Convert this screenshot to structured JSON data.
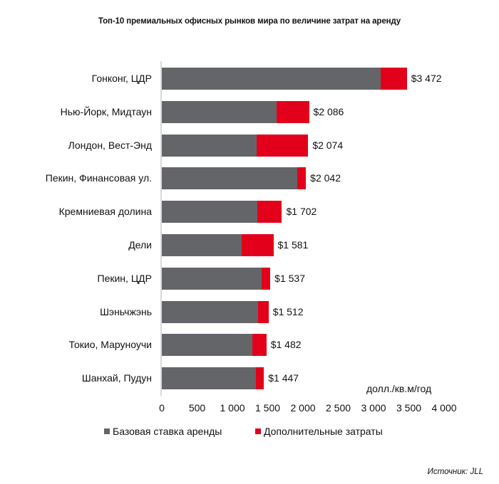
{
  "chart_data": {
    "type": "bar",
    "orientation": "horizontal",
    "stacked": true,
    "title": "Топ-10 премиальных офисных рынков мира по величине затрат на аренду",
    "xlabel": "долл./кв.м/год",
    "ylabel": "",
    "xlim": [
      0,
      4000
    ],
    "x_ticks": [
      0,
      500,
      1000,
      1500,
      2000,
      2500,
      3000,
      3500,
      4000
    ],
    "x_tick_labels": [
      "0",
      "500",
      "1 000",
      "1 500",
      "2 000",
      "2 500",
      "3 000",
      "3 500",
      "4 000"
    ],
    "grid": false,
    "legend_position": "bottom",
    "categories": [
      "Гонконг, ЦДР",
      "Нью-Йорк, Мидтаун",
      "Лондон, Вест-Энд",
      "Пекин, Финансовая ул.",
      "Кремниевая долина",
      "Дели",
      "Пекин, ЦДР",
      "Шэньчжэнь",
      "Токио, Маруноучи",
      "Шанхай, Пудун"
    ],
    "series": [
      {
        "name": "Базовая ставка аренды",
        "color": "#646569",
        "values": [
          3100,
          1625,
          1340,
          1915,
          1350,
          1130,
          1415,
          1365,
          1285,
          1330
        ]
      },
      {
        "name": "Дополнительные затраты",
        "color": "#e2001a",
        "values": [
          372,
          461,
          734,
          127,
          352,
          451,
          122,
          147,
          197,
          117
        ]
      }
    ],
    "totals": [
      3472,
      2086,
      2074,
      2042,
      1702,
      1581,
      1537,
      1512,
      1482,
      1447
    ],
    "total_labels": [
      "$3 472",
      "$2 086",
      "$2 074",
      "$2 042",
      "$1 702",
      "$1 581",
      "$1 537",
      "$1 512",
      "$1 482",
      "$1 447"
    ],
    "source": "Источник: JLL"
  },
  "legend": {
    "base_label": "Базовая ставка аренды",
    "extra_label": "Дополнительные затраты"
  },
  "colors": {
    "base": "#646569",
    "extra": "#e2001a",
    "axis": "#d9d9d9"
  }
}
